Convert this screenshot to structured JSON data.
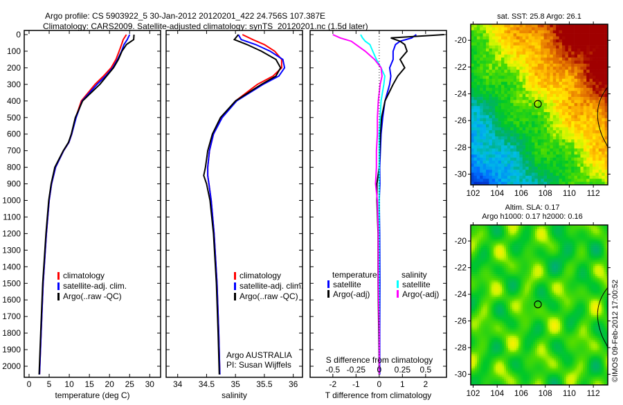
{
  "title": {
    "line1": "Argo profile: CS 5903922_5 30-Jan-2012 20120201_422 24.756S 107.387E",
    "line2": "Climatology: CARS2009. Satellite-adjusted climatology: synTS_20120201.nc (1.5d later)"
  },
  "copyright": "©IMOS 09-Feb-2012 17:00:52",
  "colors": {
    "climatology": "#ff0000",
    "satellite": "#0000ff",
    "argo": "#000000",
    "sal_satellite": "#00ffff",
    "sal_argo": "#ff00ff"
  },
  "chart_data": [
    {
      "type": "line",
      "name": "temperature-profile",
      "xlabel": "temperature (deg C)",
      "ylabel": "depth",
      "xlim": [
        -1.2,
        32.7
      ],
      "ylim": [
        2067,
        -25
      ],
      "xticks": [
        "0",
        "5",
        "10",
        "15",
        "20",
        "25",
        "30"
      ],
      "yticks": [
        "0",
        "100",
        "200",
        "300",
        "400",
        "500",
        "600",
        "700",
        "800",
        "900",
        "1000",
        "1100",
        "1200",
        "1300",
        "1400",
        "1500",
        "1600",
        "1700",
        "1800",
        "1900",
        "2000"
      ],
      "legend": [
        "climatology",
        "satellite-adj. clim.",
        "Argo(..raw -QC)"
      ],
      "depth": [
        0,
        30,
        60,
        100,
        150,
        200,
        250,
        300,
        400,
        500,
        600,
        650,
        700,
        800,
        900,
        1000,
        1200,
        1500,
        1800,
        2050
      ],
      "series": [
        {
          "name": "climatology",
          "values": [
            24.2,
            23.4,
            23.0,
            22.4,
            21.6,
            20.4,
            18.5,
            16.4,
            13.0,
            11.6,
            10.6,
            9.9,
            8.6,
            6.6,
            5.6,
            5.0,
            4.3,
            3.5,
            3.0,
            2.6
          ]
        },
        {
          "name": "satellite",
          "values": [
            25.0,
            24.4,
            23.6,
            23.0,
            22.0,
            20.8,
            19.0,
            16.9,
            13.2,
            11.7,
            10.6,
            9.9,
            8.6,
            6.6,
            5.6,
            5.0,
            4.3,
            3.5,
            3.0,
            2.6
          ]
        },
        {
          "name": "argo",
          "values": [
            26.1,
            26.0,
            24.2,
            23.1,
            22.2,
            21.0,
            19.3,
            17.6,
            13.3,
            11.5,
            10.5,
            9.8,
            8.5,
            6.4,
            5.5,
            4.9,
            4.2,
            3.4,
            2.9,
            2.5
          ]
        }
      ]
    },
    {
      "type": "line",
      "name": "salinity-profile",
      "xlabel": "salinity",
      "xlim": [
        33.8,
        36.16
      ],
      "xticks": [
        "34",
        "34.5",
        "35",
        "35.5",
        "36"
      ],
      "legend": [
        "climatology",
        "satellite-adj. clim.",
        "Argo(..raw -QC)"
      ],
      "annotation": [
        "Argo AUSTRALIA",
        "PI: Susan Wijffels"
      ],
      "depth": [
        0,
        30,
        60,
        100,
        150,
        200,
        250,
        300,
        400,
        500,
        600,
        700,
        800,
        850,
        900,
        1000,
        1200,
        1500,
        1800,
        2050
      ],
      "series": [
        {
          "name": "climatology",
          "values": [
            35.12,
            35.3,
            35.5,
            35.68,
            35.8,
            35.8,
            35.65,
            35.38,
            35.0,
            34.76,
            34.62,
            34.55,
            34.52,
            34.52,
            34.54,
            34.58,
            34.63,
            34.68,
            34.71,
            34.73
          ]
        },
        {
          "name": "satellite",
          "values": [
            35.05,
            35.1,
            35.35,
            35.6,
            35.82,
            35.85,
            35.75,
            35.48,
            35.02,
            34.77,
            34.62,
            34.55,
            34.52,
            34.52,
            34.54,
            34.58,
            34.63,
            34.68,
            34.71,
            34.73
          ]
        },
        {
          "name": "argo",
          "values": [
            35.05,
            34.98,
            35.2,
            35.45,
            35.7,
            35.78,
            35.7,
            35.45,
            35.0,
            34.74,
            34.6,
            34.52,
            34.48,
            34.45,
            34.5,
            34.56,
            34.62,
            34.67,
            34.7,
            34.72
          ]
        }
      ]
    },
    {
      "type": "line",
      "name": "difference-profile",
      "xlabel": "T difference from climatology",
      "x2label": "S difference from climatology",
      "xlim": [
        -2.98,
        2.9
      ],
      "xticks": [
        "-2",
        "-1",
        "0",
        "1",
        "2"
      ],
      "x2ticks": [
        "-0.5",
        "-0.25",
        "0",
        "0.25",
        "0.5"
      ],
      "legend_temperature": {
        "title": "temperature",
        "items": [
          "satellite",
          "Argo(-adj)"
        ]
      },
      "legend_salinity": {
        "title": "salinity",
        "items": [
          "satellite",
          "Argo(-adj)"
        ]
      },
      "depth": [
        0,
        20,
        40,
        60,
        100,
        150,
        200,
        250,
        300,
        400,
        500,
        600,
        700,
        800,
        900,
        1000,
        1200,
        1500,
        1800,
        2050
      ],
      "series": [
        {
          "name": "T satellite",
          "values": [
            1.6,
            1.4,
            0.9,
            0.7,
            0.6,
            0.6,
            0.45,
            0.5,
            0.45,
            0.25,
            0.15,
            0.08,
            0.05,
            0.02,
            0.03,
            0.0,
            0.02,
            0.03,
            0.02,
            0.02
          ]
        },
        {
          "name": "T argo",
          "values": [
            2.8,
            0.5,
            0.9,
            1.1,
            1.2,
            0.9,
            1.1,
            0.8,
            0.6,
            0.25,
            0.1,
            0.05,
            0.02,
            0.0,
            -0.1,
            -0.1,
            -0.05,
            -0.05,
            -0.02,
            0.0
          ]
        },
        {
          "name": "S satellite",
          "values": [
            -0.2,
            -0.18,
            -0.15,
            -0.1,
            -0.07,
            -0.03,
            0.02,
            0.06,
            0.05,
            0.02,
            0.01,
            0.0,
            0.0,
            0.0,
            0.0,
            0.0,
            0.0,
            0.0,
            0.0,
            0.0
          ]
        },
        {
          "name": "S argo",
          "values": [
            -0.5,
            -0.42,
            -0.3,
            -0.25,
            -0.15,
            -0.05,
            0.02,
            0.03,
            0.01,
            -0.01,
            -0.02,
            -0.02,
            -0.03,
            -0.03,
            -0.04,
            -0.02,
            -0.01,
            -0.01,
            0.0,
            0.0
          ]
        }
      ]
    },
    {
      "type": "heatmap",
      "name": "sst-map",
      "title": "sat. SST: 25.8 Argo: 26.1",
      "xlim": [
        101.8,
        113.2
      ],
      "ylim": [
        -30.8,
        -18.8
      ],
      "xticks": [
        "102",
        "104",
        "106",
        "108",
        "110",
        "112"
      ],
      "yticks": [
        "-20",
        "-22",
        "-24",
        "-26",
        "-28",
        "-30"
      ],
      "marker": {
        "lon": 107.387,
        "lat": -24.756
      }
    },
    {
      "type": "heatmap",
      "name": "sla-map",
      "title1": "Altim. SLA: 0.17",
      "title2": "Argo h1000: 0.17 h2000: 0.16",
      "xlim": [
        101.8,
        113.2
      ],
      "ylim": [
        -30.8,
        -18.8
      ],
      "xticks": [
        "102",
        "104",
        "106",
        "108",
        "110",
        "112"
      ],
      "yticks": [
        "-20",
        "-22",
        "-24",
        "-26",
        "-28",
        "-30"
      ],
      "marker": {
        "lon": 107.387,
        "lat": -24.756
      }
    }
  ]
}
